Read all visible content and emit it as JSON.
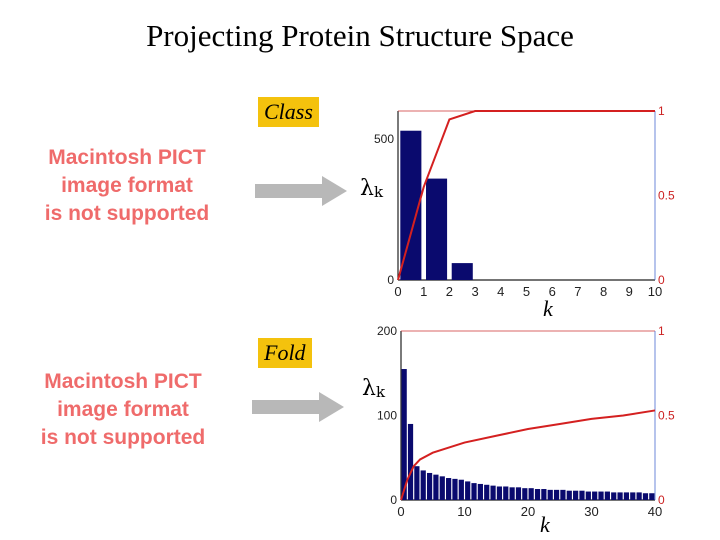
{
  "title": "Projecting Protein Structure Space",
  "placeholders": [
    {
      "lines": [
        "Macintosh PICT",
        "image format",
        "is not supported"
      ]
    },
    {
      "lines": [
        "Macintosh PICT",
        "image format",
        "is not supported"
      ]
    }
  ],
  "panels": [
    {
      "tag": "Class",
      "lambda": "λ",
      "lambda_sub": "k",
      "k_label": "k"
    },
    {
      "tag": "Fold",
      "lambda": "λ",
      "lambda_sub": "k",
      "k_label": "k"
    }
  ],
  "colors": {
    "bar": "#0a0a6e",
    "line": "#d42020",
    "tag": "#f4c20d",
    "placeholder": "#ef6b6b",
    "arrow": "#b8b8b8"
  },
  "chart_data": [
    {
      "type": "bar",
      "x": [
        1,
        2,
        3,
        4,
        5,
        6,
        7,
        8,
        9,
        10
      ],
      "values": [
        530,
        360,
        60,
        0,
        0,
        0,
        0,
        0,
        0,
        0
      ],
      "cumulative": [
        [
          0,
          0
        ],
        [
          1,
          0.55
        ],
        [
          2,
          0.95
        ],
        [
          3,
          1
        ],
        [
          10,
          1
        ]
      ],
      "xlim": [
        0,
        10
      ],
      "ylim": [
        0,
        600
      ],
      "y2lim": [
        0,
        1
      ],
      "xticks": [
        "0",
        "1",
        "2",
        "3",
        "4",
        "5",
        "6",
        "7",
        "8",
        "9",
        "10"
      ],
      "yticks": [
        {
          "v": 0,
          "label": "0"
        },
        {
          "v": 500,
          "label": "500"
        }
      ],
      "y2ticks": [
        {
          "v": 0,
          "label": "0"
        },
        {
          "v": 0.5,
          "label": "0.5"
        },
        {
          "v": 1,
          "label": "1"
        }
      ]
    },
    {
      "type": "bar",
      "x": [
        1,
        2,
        3,
        4,
        5,
        6,
        7,
        8,
        9,
        10,
        11,
        12,
        13,
        14,
        15,
        16,
        17,
        18,
        19,
        20,
        21,
        22,
        23,
        24,
        25,
        26,
        27,
        28,
        29,
        30,
        31,
        32,
        33,
        34,
        35,
        36,
        37,
        38,
        39,
        40
      ],
      "values": [
        155,
        90,
        40,
        35,
        32,
        30,
        28,
        26,
        25,
        24,
        22,
        20,
        19,
        18,
        17,
        16,
        16,
        15,
        15,
        14,
        14,
        13,
        13,
        12,
        12,
        12,
        11,
        11,
        11,
        10,
        10,
        10,
        10,
        9,
        9,
        9,
        9,
        9,
        8,
        8
      ],
      "cumulative": [
        [
          0,
          0
        ],
        [
          1,
          0.12
        ],
        [
          2,
          0.2
        ],
        [
          3,
          0.24
        ],
        [
          5,
          0.28
        ],
        [
          10,
          0.34
        ],
        [
          15,
          0.38
        ],
        [
          20,
          0.42
        ],
        [
          25,
          0.45
        ],
        [
          30,
          0.48
        ],
        [
          35,
          0.5
        ],
        [
          40,
          0.53
        ]
      ],
      "xlim": [
        0,
        40
      ],
      "ylim": [
        0,
        200
      ],
      "y2lim": [
        0,
        1
      ],
      "xticks": [
        "0",
        "10",
        "20",
        "30",
        "40"
      ],
      "yticks": [
        {
          "v": 0,
          "label": "0"
        },
        {
          "v": 100,
          "label": "100"
        },
        {
          "v": 200,
          "label": "200"
        }
      ],
      "y2ticks": [
        {
          "v": 0,
          "label": "0"
        },
        {
          "v": 0.5,
          "label": "0.5"
        },
        {
          "v": 1,
          "label": "1"
        }
      ]
    }
  ]
}
